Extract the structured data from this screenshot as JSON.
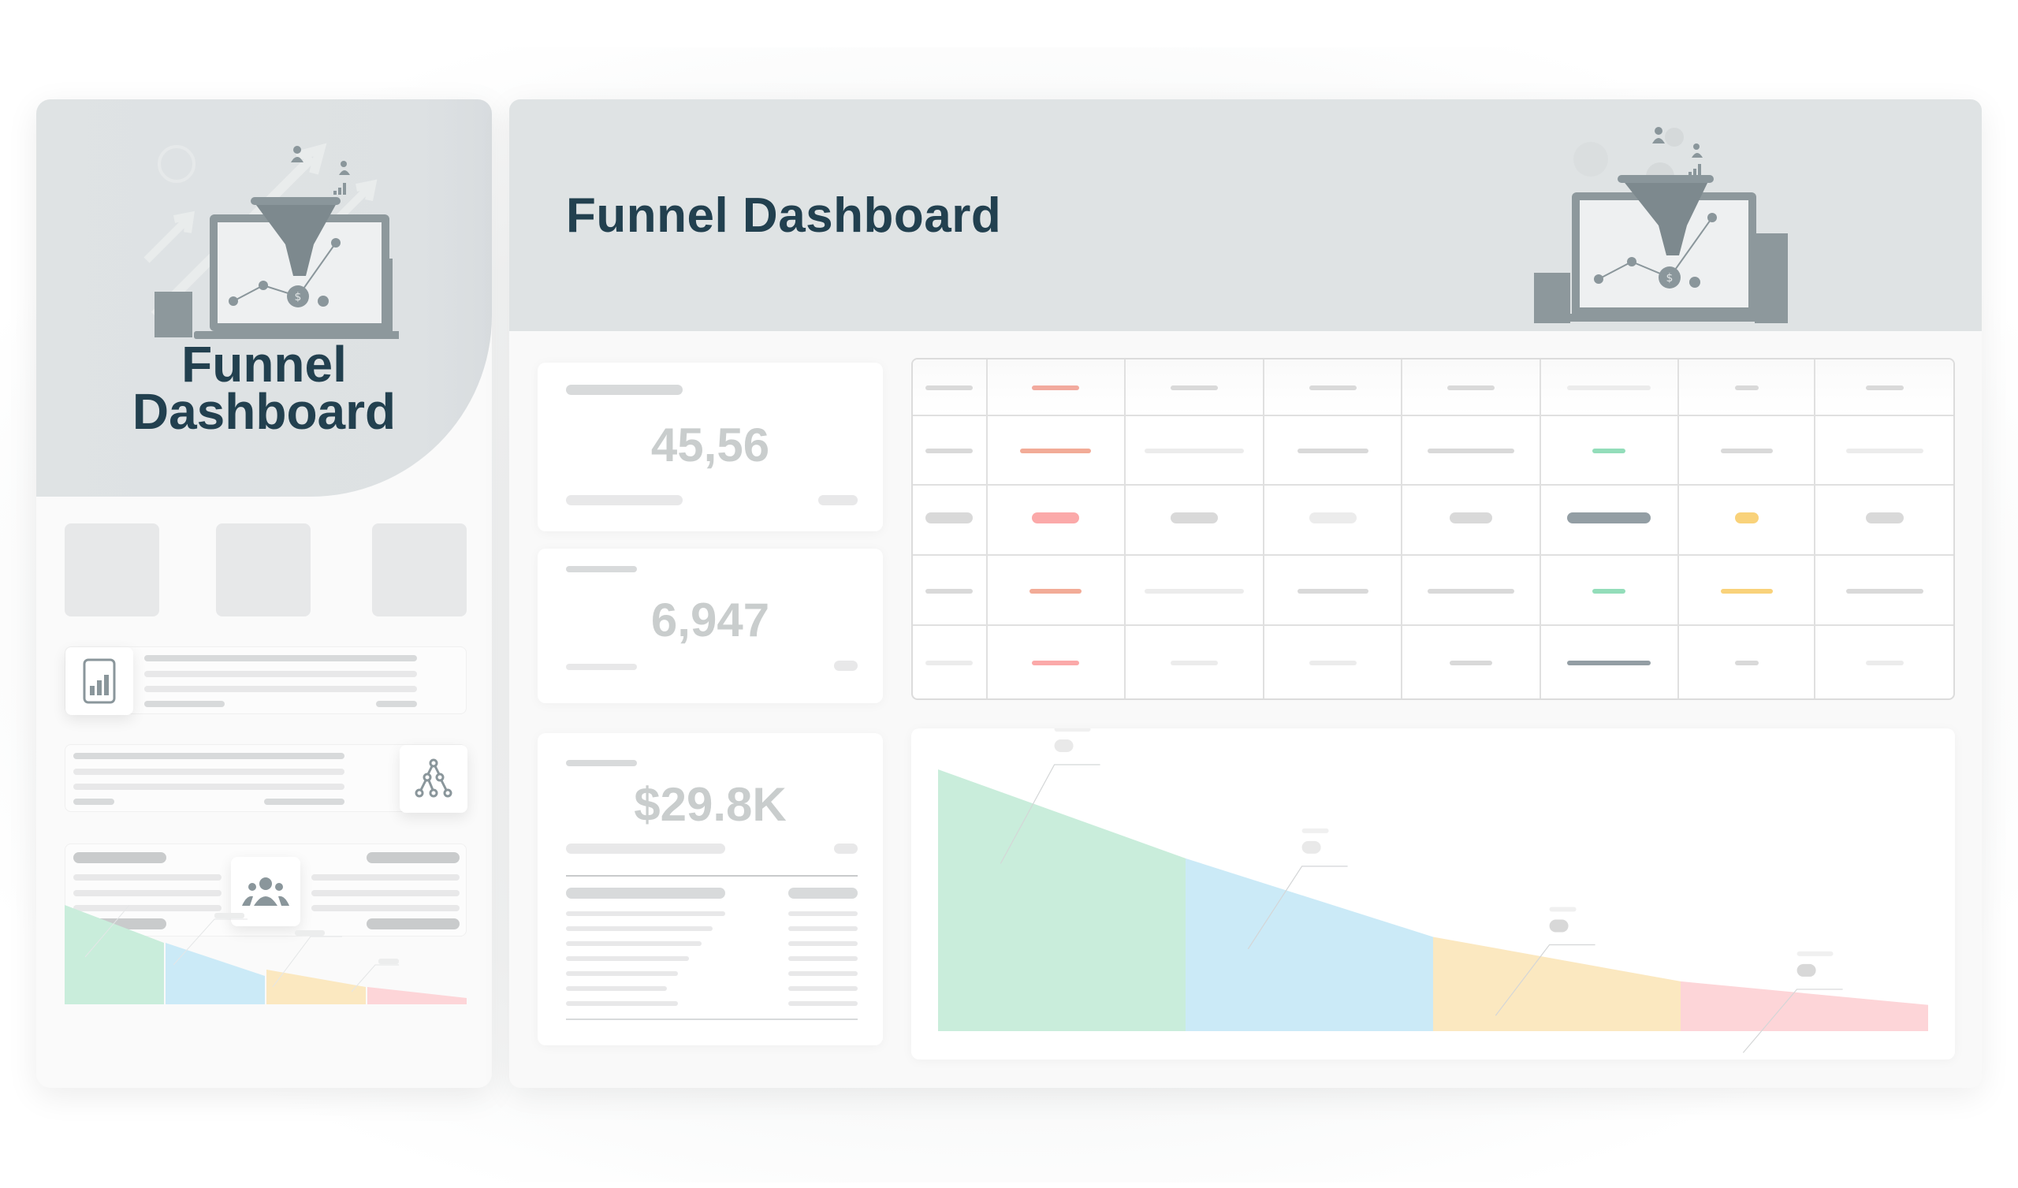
{
  "sidebar": {
    "title": "Funnel Dashboard",
    "title_line1": "Funnel",
    "title_line2": "Dashboard",
    "illustration": "funnel-laptop-illustration",
    "tiles": [
      {
        "name": "thumbnail-1"
      },
      {
        "name": "thumbnail-2"
      },
      {
        "name": "thumbnail-3"
      }
    ],
    "cards": [
      {
        "icon": "bar-chart-icon",
        "icon_side": "left"
      },
      {
        "icon": "hierarchy-tree-icon",
        "icon_side": "right"
      },
      {
        "icon": "users-group-icon",
        "icon_side": "center"
      }
    ],
    "mini_funnel_colors": [
      "#c9eddb",
      "#cbeaf7",
      "#fbe8c0",
      "#fdd5d8"
    ]
  },
  "header": {
    "title": "Funnel Dashboard",
    "illustration": "funnel-laptop-illustration"
  },
  "stats": [
    {
      "value": "45,56",
      "label": "metric-1"
    },
    {
      "value": "6,947",
      "label": "metric-2"
    },
    {
      "value": "$29.8K",
      "label": "metric-3"
    }
  ],
  "table": {
    "columns": 8,
    "rows": [
      [
        {
          "c": "#d9d9d9",
          "w": 60,
          "h": 6
        },
        {
          "c": "#f2aa9e",
          "w": 60,
          "h": 6
        },
        {
          "c": "#d9d9d9",
          "w": 60,
          "h": 6
        },
        {
          "c": "#d9d9d9",
          "w": 60,
          "h": 6
        },
        {
          "c": "#d9d9d9",
          "w": 60,
          "h": 6
        },
        {
          "c": "#ececec",
          "w": 106,
          "h": 6
        },
        {
          "c": "#d9d9d9",
          "w": 30,
          "h": 6
        },
        {
          "c": "#d9d9d9",
          "w": 48,
          "h": 6
        }
      ],
      [
        {
          "c": "#d9d9d9",
          "w": 60,
          "h": 6
        },
        {
          "c": "#f2ab97",
          "w": 90,
          "h": 6
        },
        {
          "c": "#ececec",
          "w": 126,
          "h": 6
        },
        {
          "c": "#d9d9d9",
          "w": 90,
          "h": 6
        },
        {
          "c": "#d9d9d9",
          "w": 110,
          "h": 6
        },
        {
          "c": "#93ddba",
          "w": 42,
          "h": 6
        },
        {
          "c": "#d9d9d9",
          "w": 66,
          "h": 6
        },
        {
          "c": "#ececec",
          "w": 98,
          "h": 6
        }
      ],
      [
        {
          "c": "#d9d9d9",
          "w": 60,
          "h": 14
        },
        {
          "c": "#fba9a9",
          "w": 60,
          "h": 14
        },
        {
          "c": "#d9d9d9",
          "w": 60,
          "h": 14
        },
        {
          "c": "#ececec",
          "w": 60,
          "h": 14
        },
        {
          "c": "#d9d9d9",
          "w": 54,
          "h": 14
        },
        {
          "c": "#939ea4",
          "w": 106,
          "h": 14
        },
        {
          "c": "#f9d27a",
          "w": 30,
          "h": 14
        },
        {
          "c": "#d9d9d9",
          "w": 48,
          "h": 14
        }
      ],
      [
        {
          "c": "#d9d9d9",
          "w": 60,
          "h": 6
        },
        {
          "c": "#f2ab97",
          "w": 66,
          "h": 6
        },
        {
          "c": "#ececec",
          "w": 126,
          "h": 6
        },
        {
          "c": "#d9d9d9",
          "w": 90,
          "h": 6
        },
        {
          "c": "#d9d9d9",
          "w": 110,
          "h": 6
        },
        {
          "c": "#93ddba",
          "w": 42,
          "h": 6
        },
        {
          "c": "#f9d27a",
          "w": 66,
          "h": 6
        },
        {
          "c": "#d9d9d9",
          "w": 98,
          "h": 6
        }
      ],
      [
        {
          "c": "#ececec",
          "w": 60,
          "h": 6
        },
        {
          "c": "#fba9a9",
          "w": 60,
          "h": 6
        },
        {
          "c": "#ececec",
          "w": 60,
          "h": 6
        },
        {
          "c": "#ececec",
          "w": 60,
          "h": 6
        },
        {
          "c": "#d9d9d9",
          "w": 54,
          "h": 6
        },
        {
          "c": "#939ea4",
          "w": 106,
          "h": 6
        },
        {
          "c": "#d9d9d9",
          "w": 30,
          "h": 6
        },
        {
          "c": "#ececec",
          "w": 48,
          "h": 6
        }
      ]
    ]
  },
  "funnel_chart": {
    "stages": [
      {
        "color": "#c9eddb",
        "start": 1.0,
        "end": 0.66
      },
      {
        "color": "#cbeaf7",
        "start": 0.66,
        "end": 0.36
      },
      {
        "color": "#fbe8c0",
        "start": 0.36,
        "end": 0.19
      },
      {
        "color": "#fdd5d8",
        "start": 0.19,
        "end": 0.1
      }
    ]
  },
  "colors": {
    "title": "#22404f",
    "header_bg": "#dfe3e4",
    "stat_value": "#c9cdcd",
    "illustration": "#8a969b"
  }
}
